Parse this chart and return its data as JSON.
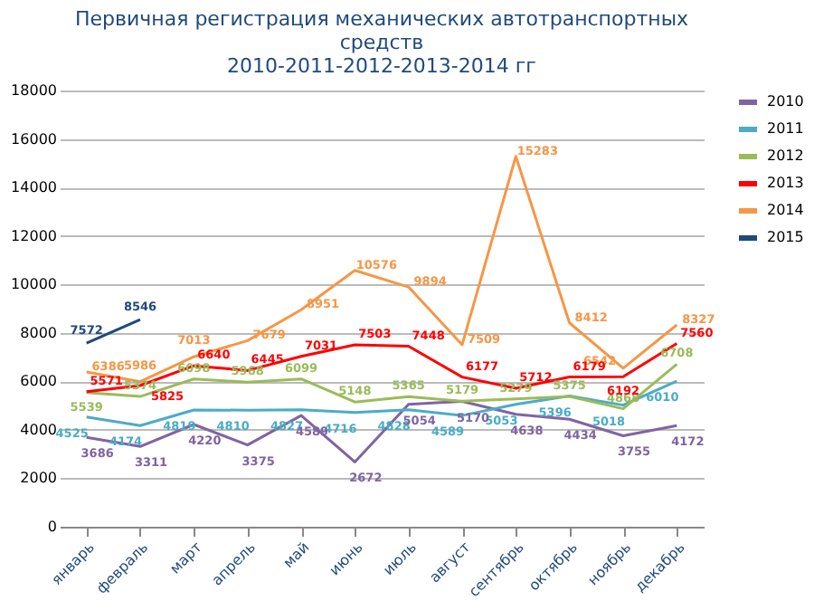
{
  "chart_data": {
    "type": "line",
    "title": "Первичная регистрация механических автотранспортных\nсредств\n2010-2011-2012-2013-2014 гг",
    "categories": [
      "январь",
      "февраль",
      "март",
      "апрель",
      "май",
      "июнь",
      "июль",
      "август",
      "сентябрь",
      "октябрь",
      "ноябрь",
      "декабрь"
    ],
    "series": [
      {
        "name": "2010",
        "color": "#8064a2",
        "values": [
          3686,
          3311,
          4220,
          3375,
          4589,
          2672,
          5054,
          5170,
          4638,
          4434,
          3755,
          4172
        ]
      },
      {
        "name": "2011",
        "color": "#4bacc6",
        "values": [
          4525,
          4174,
          4819,
          4810,
          4827,
          4716,
          4828,
          4589,
          5053,
          5396,
          5018,
          6010
        ]
      },
      {
        "name": "2012",
        "color": "#9bbb59",
        "values": [
          5539,
          5374,
          6098,
          5968,
          6099,
          5148,
          5365,
          5179,
          5279,
          5375,
          4868,
          6708
        ]
      },
      {
        "name": "2013",
        "color": "#ff0000",
        "values": [
          5571,
          5825,
          6640,
          6445,
          7031,
          7503,
          7448,
          6177,
          5712,
          6179,
          6192,
          7560
        ]
      },
      {
        "name": "2014",
        "color": "#f79646",
        "values": [
          6386,
          5986,
          7013,
          7679,
          8951,
          10576,
          9894,
          7509,
          15283,
          8412,
          6542,
          8327
        ]
      },
      {
        "name": "2015",
        "color": "#1f497d",
        "values": [
          7572,
          8546,
          null,
          null,
          null,
          null,
          null,
          null,
          null,
          null,
          null,
          null
        ]
      }
    ],
    "ylim": [
      0,
      18000
    ],
    "yticks": [
      0,
      2000,
      4000,
      6000,
      8000,
      10000,
      12000,
      14000,
      16000,
      18000
    ],
    "grid": "y",
    "legend": "right",
    "data_labels": true,
    "marker": "none",
    "line_style": "solid"
  }
}
